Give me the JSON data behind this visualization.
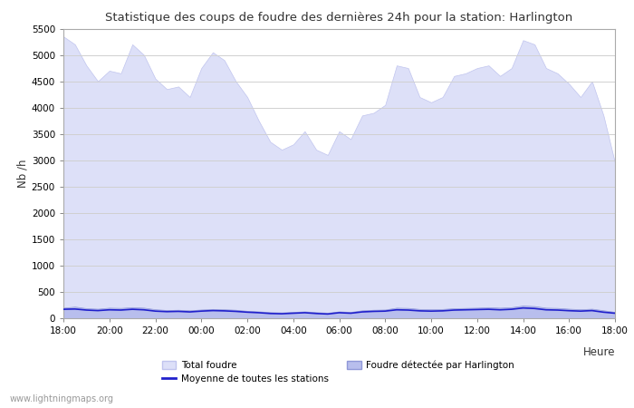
{
  "title": "Statistique des coups de foudre des dernières 24h pour la station: Harlington",
  "xlabel": "Heure",
  "ylabel": "Nb /h",
  "watermark": "www.lightningmaps.org",
  "ylim": [
    0,
    5500
  ],
  "yticks": [
    0,
    500,
    1000,
    1500,
    2000,
    2500,
    3000,
    3500,
    4000,
    4500,
    5000,
    5500
  ],
  "xtick_labels": [
    "18:00",
    "20:00",
    "22:00",
    "00:00",
    "02:00",
    "04:00",
    "06:00",
    "08:00",
    "10:00",
    "12:00",
    "14:00",
    "16:00",
    "18:00"
  ],
  "bg_color": "#ffffff",
  "plot_bg_color": "#ffffff",
  "grid_color": "#d0d0d0",
  "total_foudre_color": "#dde0f8",
  "total_foudre_edge": "#c0c4ee",
  "harlington_color": "#b8beed",
  "harlington_edge": "#9098d8",
  "moyenne_color": "#2020cc",
  "x": [
    0,
    1,
    2,
    3,
    4,
    5,
    6,
    7,
    8,
    9,
    10,
    11,
    12,
    13,
    14,
    15,
    16,
    17,
    18,
    19,
    20,
    21,
    22,
    23,
    24,
    25,
    26,
    27,
    28,
    29,
    30,
    31,
    32,
    33,
    34,
    35,
    36,
    37,
    38,
    39,
    40,
    41,
    42,
    43,
    44,
    45,
    46,
    47,
    48
  ],
  "total_foudre_y": [
    5350,
    5200,
    4800,
    4500,
    4700,
    4650,
    5200,
    5000,
    4550,
    4350,
    4400,
    4200,
    4750,
    5050,
    4900,
    4500,
    4200,
    3750,
    3350,
    3200,
    3300,
    3550,
    3200,
    3100,
    3550,
    3400,
    3850,
    3900,
    4050,
    4800,
    4750,
    4200,
    4100,
    4200,
    4600,
    4650,
    4750,
    4800,
    4600,
    4750,
    5280,
    5200,
    4750,
    4650,
    4450,
    4200,
    4500,
    3850,
    2950
  ],
  "harlington_y": [
    200,
    220,
    190,
    180,
    200,
    195,
    210,
    200,
    170,
    155,
    160,
    150,
    165,
    175,
    170,
    160,
    140,
    130,
    115,
    110,
    120,
    130,
    115,
    105,
    130,
    120,
    150,
    160,
    165,
    200,
    195,
    175,
    170,
    175,
    190,
    195,
    200,
    210,
    200,
    210,
    240,
    230,
    200,
    195,
    180,
    170,
    180,
    150,
    120
  ],
  "moyenne_y": [
    170,
    175,
    155,
    145,
    160,
    155,
    170,
    160,
    135,
    125,
    130,
    120,
    135,
    145,
    140,
    130,
    115,
    105,
    90,
    85,
    95,
    105,
    90,
    80,
    105,
    95,
    120,
    130,
    135,
    160,
    155,
    140,
    135,
    140,
    155,
    160,
    165,
    170,
    160,
    170,
    195,
    185,
    160,
    155,
    143,
    135,
    145,
    115,
    95
  ]
}
